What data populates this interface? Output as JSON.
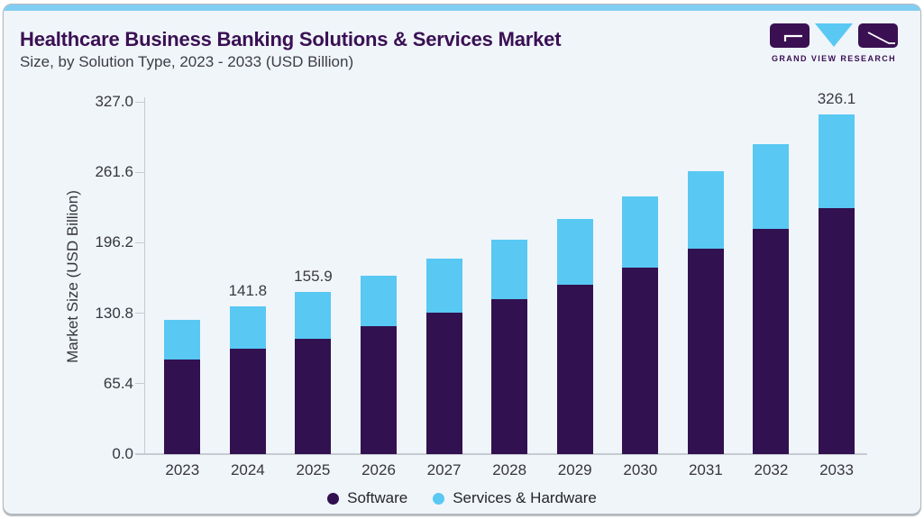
{
  "header": {
    "title": "Healthcare Business Banking Solutions & Services Market",
    "subtitle": "Size, by Solution Type, 2023 - 2033 (USD Billion)"
  },
  "logo": {
    "wordmark": "GRAND VIEW RESEARCH"
  },
  "colors": {
    "software": "#321150",
    "services": "#59C8F3",
    "accent_strip": "#82CEF2",
    "card_background": "#F0F5FA",
    "title_text": "#3A1053",
    "axis_text": "#36363C",
    "axis_line": "#C6CBD1"
  },
  "chart_data": {
    "type": "bar",
    "stacked": true,
    "title": "Healthcare Business Banking Solutions & Services Market Size, by Solution Type, 2023 - 2033 (USD Billion)",
    "categories": [
      "2023",
      "2024",
      "2025",
      "2026",
      "2027",
      "2028",
      "2029",
      "2030",
      "2031",
      "2032",
      "2033"
    ],
    "series": [
      {
        "name": "Software",
        "color": "#321150",
        "values": [
          90.5,
          100.9,
          110.9,
          122.4,
          135.4,
          148.3,
          162.7,
          178.8,
          197.3,
          216.0,
          235.9
        ]
      },
      {
        "name": "Services & Hardware",
        "color": "#59C8F3",
        "values": [
          38.5,
          40.9,
          45.0,
          48.6,
          52.1,
          57.3,
          62.7,
          68.4,
          73.8,
          81.3,
          90.2
        ]
      }
    ],
    "totals": [
      129.0,
      141.8,
      155.9,
      171.0,
      187.5,
      205.6,
      225.4,
      247.2,
      271.1,
      297.3,
      326.1
    ],
    "bar_labels": [
      "",
      "141.8",
      "155.9",
      "",
      "",
      "",
      "",
      "",
      "",
      "",
      "326.1"
    ],
    "ylabel": "Market Size (USD Billion)",
    "yticks": [
      "327.0",
      "261.6",
      "196.2",
      "130.8",
      "65.4",
      "0.0"
    ],
    "ylim": [
      0,
      327
    ],
    "grid": false,
    "legend_position": "bottom"
  }
}
